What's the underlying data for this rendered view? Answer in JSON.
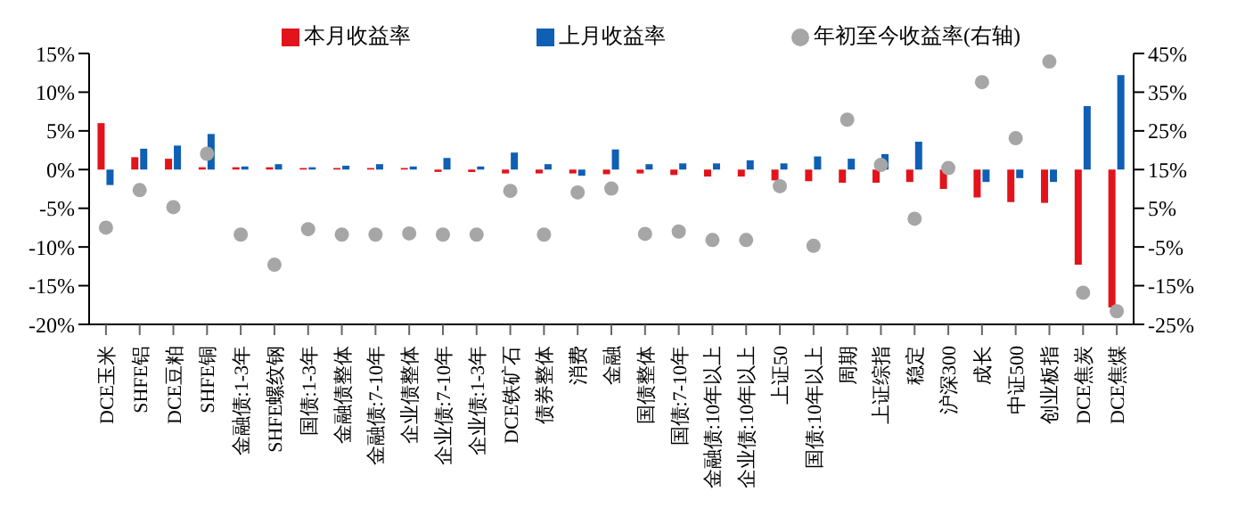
{
  "chart_data": {
    "type": "bar",
    "categories": [
      "DCE玉米",
      "SHFE铝",
      "DCE豆粕",
      "SHFE铜",
      "金融债:1-3年",
      "SHFE螺纹钢",
      "国债:1-3年",
      "金融债整体",
      "金融债:7-10年",
      "企业债整体",
      "企业债:7-10年",
      "企业债:1-3年",
      "DCE铁矿石",
      "债券整体",
      "消费",
      "金融",
      "国债整体",
      "国债:7-10年",
      "金融债:10年以上",
      "企业债:10年以上",
      "上证50",
      "国债:10年以上",
      "周期",
      "上证综指",
      "稳定",
      "沪深300",
      "成长",
      "中证500",
      "创业板指",
      "DCE焦炭",
      "DCE焦煤"
    ],
    "series": [
      {
        "name": "本月收益率",
        "color": "#e3131b",
        "values": [
          6.0,
          1.6,
          1.4,
          0.3,
          0.3,
          0.3,
          0.2,
          0.2,
          0.2,
          0.2,
          -0.3,
          -0.3,
          -0.5,
          -0.5,
          -0.5,
          -0.6,
          -0.5,
          -0.7,
          -0.9,
          -0.9,
          -1.4,
          -1.5,
          -1.7,
          -1.7,
          -1.6,
          -2.5,
          -3.6,
          -4.2,
          -4.3,
          -12.3,
          -17.8
        ]
      },
      {
        "name": "上月收益率",
        "color": "#0f5fb4",
        "values": [
          -2.0,
          2.7,
          3.1,
          4.6,
          0.4,
          0.7,
          0.3,
          0.5,
          0.7,
          0.4,
          1.5,
          0.4,
          2.2,
          0.7,
          -0.8,
          2.6,
          0.7,
          0.8,
          0.8,
          1.2,
          0.8,
          1.7,
          1.4,
          2.0,
          3.6,
          null,
          -1.6,
          -1.1,
          -1.6,
          8.2,
          12.2
        ]
      },
      {
        "name": "年初至今收益率(右轴)",
        "type": "scatter",
        "axis": "y2",
        "color": "#a6a6a6",
        "values": [
          0,
          9.7,
          5.3,
          19.1,
          -1.8,
          -9.6,
          -0.4,
          -1.8,
          -1.8,
          -1.5,
          -1.8,
          -1.8,
          9.5,
          -1.8,
          9.1,
          10.1,
          -1.6,
          -1.0,
          -3.2,
          -3.2,
          10.7,
          -4.7,
          27.9,
          16.2,
          2.3,
          15.4,
          37.6,
          23.1,
          42.9,
          -16.8,
          -21.6
        ]
      }
    ],
    "ylim": [
      -20,
      15
    ],
    "yticks": [
      {
        "value": -20,
        "label": "-20%"
      },
      {
        "value": -15,
        "label": "-15%"
      },
      {
        "value": -10,
        "label": "-10%"
      },
      {
        "value": -5,
        "label": "-5%"
      },
      {
        "value": 0,
        "label": "0%"
      },
      {
        "value": 5,
        "label": "5%"
      },
      {
        "value": 10,
        "label": "10%"
      },
      {
        "value": 15,
        "label": "15%"
      }
    ],
    "y2lim": [
      -25,
      45
    ],
    "y2ticks": [
      {
        "value": -25,
        "label": "-25%"
      },
      {
        "value": -15,
        "label": "-15%"
      },
      {
        "value": -5,
        "label": "-5%"
      },
      {
        "value": 5,
        "label": "5%"
      },
      {
        "value": 15,
        "label": "15%"
      },
      {
        "value": 25,
        "label": "25%"
      },
      {
        "value": 35,
        "label": "35%"
      },
      {
        "value": 45,
        "label": "45%"
      }
    ],
    "legend": "top",
    "marker": "circle"
  }
}
